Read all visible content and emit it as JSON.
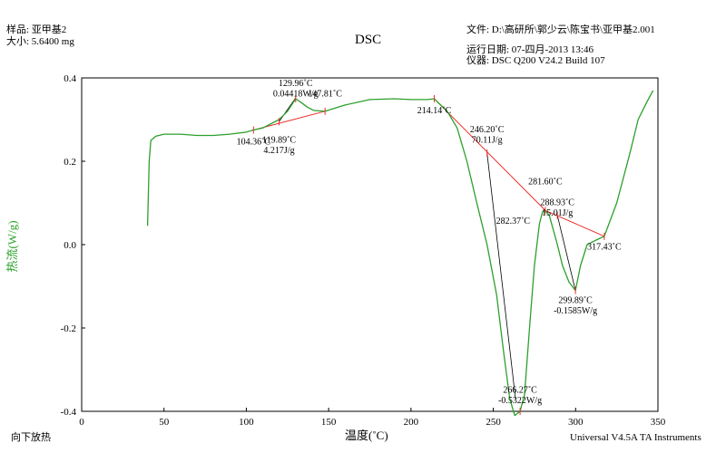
{
  "header": {
    "sample_label": "样品: 亚甲基2",
    "size_label": "大小: 5.6400 mg",
    "title": "DSC",
    "file_label": "文件: D:\\高研所\\郭少云\\陈宝书\\亚甲基2.001",
    "run_date_label": "运行日期: 07-四月-2013 13:46",
    "instrument_label": "仪器: DSC Q200 V24.2 Build 107"
  },
  "footer": {
    "exo_note": "向下放热",
    "software": "Universal V4.5A TA Instruments"
  },
  "colors": {
    "curve": "#2ca02c",
    "baseline": "#e8302a",
    "tangent": "#000000",
    "ylabel": "#2ca02c"
  },
  "chart_data": {
    "type": "line",
    "title": "DSC",
    "xlabel": "温度(˚C)",
    "ylabel": "热流(W/g)",
    "xlim": [
      0,
      350
    ],
    "ylim": [
      -0.4,
      0.4
    ],
    "xticks": [
      "0",
      "50",
      "100",
      "150",
      "200",
      "250",
      "300",
      "350"
    ],
    "yticks": [
      "0.4",
      "0.2",
      "0.0",
      "-0.2",
      "-0.4"
    ],
    "series": [
      {
        "x": [
          40,
          41,
          42,
          45,
          50,
          60,
          70,
          80,
          90,
          100,
          104.36,
          110,
          119.89,
          125,
          129.96,
          133,
          137,
          141,
          147.81,
          160,
          175,
          190,
          200,
          210,
          214.14,
          222,
          228,
          234,
          240,
          246.2,
          252,
          256,
          260,
          263,
          266.27,
          269,
          272,
          275,
          278,
          280,
          281.6,
          284,
          288.93,
          292,
          296,
          299.89,
          303,
          307,
          312,
          317.43,
          325,
          333,
          338,
          343,
          347
        ],
        "y": [
          0.045,
          0.2,
          0.25,
          0.26,
          0.265,
          0.265,
          0.262,
          0.262,
          0.265,
          0.27,
          0.275,
          0.28,
          0.3,
          0.32,
          0.35,
          0.342,
          0.33,
          0.322,
          0.32,
          0.335,
          0.348,
          0.35,
          0.348,
          0.348,
          0.35,
          0.32,
          0.28,
          0.2,
          0.1,
          0.0,
          -0.12,
          -0.25,
          -0.37,
          -0.41,
          -0.4,
          -0.36,
          -0.2,
          -0.05,
          0.05,
          0.08,
          0.082,
          0.07,
          0.0,
          -0.05,
          -0.09,
          -0.11,
          -0.05,
          0.0,
          0.01,
          0.02,
          0.1,
          0.22,
          0.3,
          0.34,
          0.37
        ]
      }
    ],
    "baselines": [
      {
        "x": [
          104.36,
          147.81
        ],
        "y": [
          0.275,
          0.32
        ]
      },
      {
        "x": [
          214.14,
          281.6
        ],
        "y": [
          0.35,
          0.082
        ]
      },
      {
        "x": [
          281.6,
          317.43
        ],
        "y": [
          0.082,
          0.02
        ]
      }
    ],
    "tangents": [
      {
        "x": [
          119.89,
          129.96
        ],
        "y": [
          0.295,
          0.352
        ]
      },
      {
        "x": [
          246.2,
          263.5
        ],
        "y": [
          0.22,
          -0.37
        ]
      },
      {
        "x": [
          288.93,
          299.89
        ],
        "y": [
          0.07,
          -0.11
        ]
      }
    ],
    "markers": [
      {
        "x": 104.36,
        "y": 0.275
      },
      {
        "x": 119.89,
        "y": 0.295
      },
      {
        "x": 129.96,
        "y": 0.35
      },
      {
        "x": 147.81,
        "y": 0.32
      },
      {
        "x": 214.14,
        "y": 0.35
      },
      {
        "x": 246.2,
        "y": 0.22
      },
      {
        "x": 266.27,
        "y": -0.4
      },
      {
        "x": 281.6,
        "y": 0.082
      },
      {
        "x": 288.93,
        "y": 0.07
      },
      {
        "x": 299.89,
        "y": -0.11
      },
      {
        "x": 317.43,
        "y": 0.02
      }
    ],
    "annotations": [
      {
        "text": "129.96˚C",
        "x": 129.96,
        "y": 0.38
      },
      {
        "text": "0.04418W/g",
        "x": 129.96,
        "y": 0.355
      },
      {
        "text": "147.81˚C",
        "x": 147.81,
        "y": 0.355
      },
      {
        "text": "104.36˚C",
        "x": 104.36,
        "y": 0.24
      },
      {
        "text": "119.89˚C",
        "x": 119.89,
        "y": 0.245
      },
      {
        "text": "4.217J/g",
        "x": 119.89,
        "y": 0.22
      },
      {
        "text": "214.14˚C",
        "x": 214.14,
        "y": 0.315
      },
      {
        "text": "246.20˚C",
        "x": 246.2,
        "y": 0.27
      },
      {
        "text": "70.11J/g",
        "x": 246.2,
        "y": 0.245
      },
      {
        "text": "281.60˚C",
        "x": 281.6,
        "y": 0.145
      },
      {
        "text": "288.93˚C",
        "x": 288.93,
        "y": 0.095
      },
      {
        "text": "15.01J/g",
        "x": 288.93,
        "y": 0.07
      },
      {
        "text": "282.37˚C",
        "x": 262,
        "y": 0.05
      },
      {
        "text": "317.43˚C",
        "x": 317.43,
        "y": -0.012
      },
      {
        "text": "299.89˚C",
        "x": 299.89,
        "y": -0.14
      },
      {
        "text": "-0.1585W/g",
        "x": 299.89,
        "y": -0.165
      },
      {
        "text": "266.27˚C",
        "x": 266.27,
        "y": -0.355
      },
      {
        "text": "-0.5322W/g",
        "x": 266.27,
        "y": -0.38
      }
    ]
  }
}
